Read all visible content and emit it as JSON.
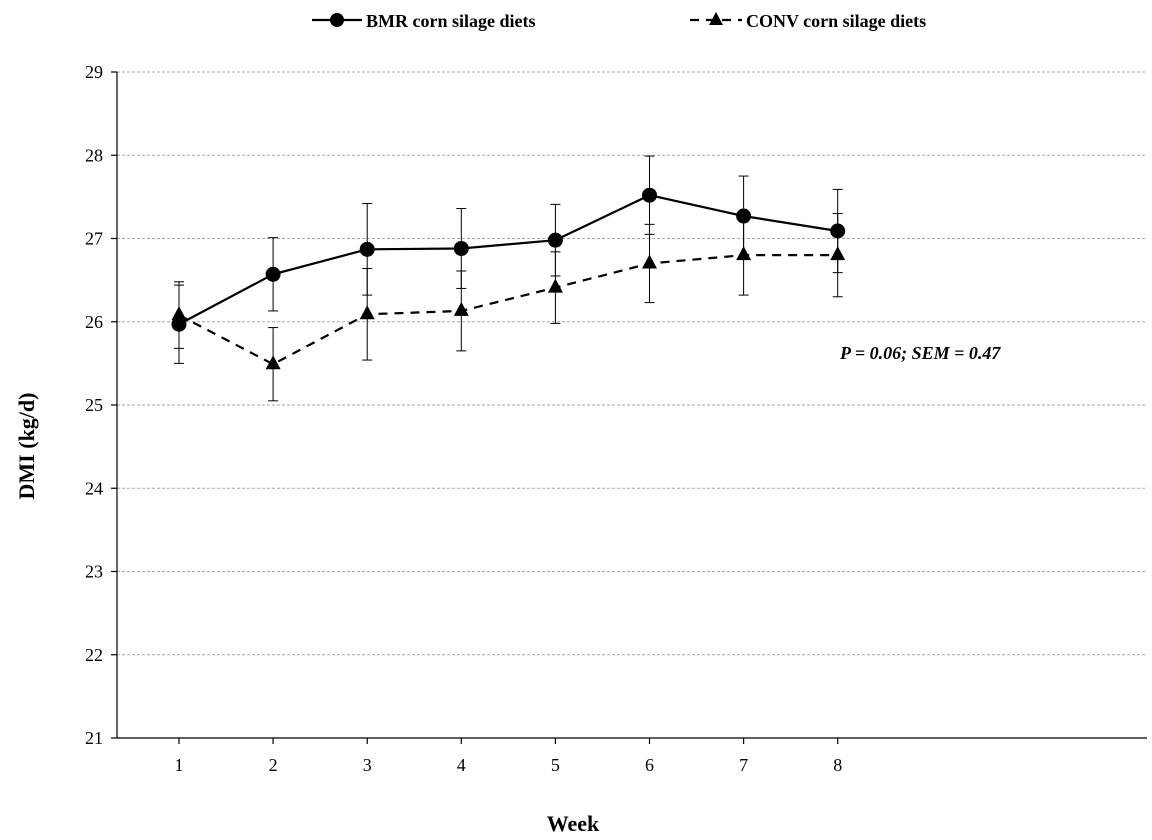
{
  "chart_data": {
    "type": "line",
    "title": "",
    "xlabel": "Week",
    "ylabel": "DMI (kg/d)",
    "ylim": [
      21,
      29
    ],
    "yticks": [
      "21",
      "22",
      "23",
      "24",
      "25",
      "26",
      "27",
      "28",
      "29"
    ],
    "x": [
      1,
      2,
      3,
      4,
      5,
      6,
      7,
      8
    ],
    "xtick_labels": [
      "1",
      "2",
      "3",
      "4",
      "5",
      "6",
      "7",
      "8"
    ],
    "grid": "horizontal dashed",
    "legend_position": "top-center",
    "series": [
      {
        "name": "BMR corn silage diets",
        "style": "solid",
        "marker": "circle",
        "color": "#000000",
        "values": [
          25.97,
          26.57,
          26.87,
          26.88,
          26.98,
          27.52,
          27.27,
          27.09
        ],
        "error": [
          0.47,
          0.44,
          0.55,
          0.48,
          0.43,
          0.47,
          0.48,
          0.5
        ]
      },
      {
        "name": "CONV corn silage diets",
        "style": "dashed",
        "marker": "triangle",
        "color": "#000000",
        "values": [
          26.08,
          25.49,
          26.09,
          26.13,
          26.41,
          26.7,
          26.8,
          26.8
        ],
        "error": [
          0.4,
          0.44,
          0.55,
          0.48,
          0.43,
          0.47,
          0.48,
          0.5
        ]
      }
    ],
    "annotation": "P = 0.06; SEM = 0.47"
  }
}
